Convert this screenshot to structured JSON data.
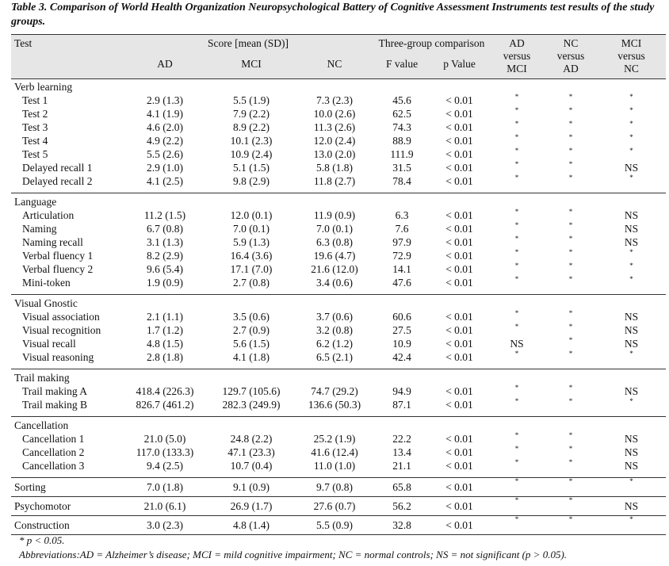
{
  "caption": "Table 3. Comparison of World Health Organization Neuropsychological Battery of Cognitive Assessment Instruments test results of the study groups.",
  "header": {
    "test": "Test",
    "score": "Score [mean (SD)]",
    "three_group": "Three-group comparison",
    "ad_vs_mci": [
      "AD",
      "versus",
      "MCI"
    ],
    "nc_vs_ad": [
      "NC",
      "versus",
      "AD"
    ],
    "mci_vs_nc": [
      "MCI",
      "versus",
      "NC"
    ],
    "ad": "AD",
    "mci": "MCI",
    "nc": "NC",
    "f_value": "F value",
    "p_value": "p Value"
  },
  "sections": [
    {
      "title": "Verb learning",
      "rows": [
        {
          "test": "Test 1",
          "ad": "2.9 (1.3)",
          "mci": "5.5 (1.9)",
          "nc": "7.3 (2.3)",
          "f": "45.6",
          "p": "< 0.01",
          "c1": "*",
          "c2": "*",
          "c3": "*"
        },
        {
          "test": "Test 2",
          "ad": "4.1 (1.9)",
          "mci": "7.9 (2.2)",
          "nc": "10.0 (2.6)",
          "f": "62.5",
          "p": "< 0.01",
          "c1": "*",
          "c2": "*",
          "c3": "*"
        },
        {
          "test": "Test 3",
          "ad": "4.6 (2.0)",
          "mci": "8.9 (2.2)",
          "nc": "11.3 (2.6)",
          "f": "74.3",
          "p": "< 0.01",
          "c1": "*",
          "c2": "*",
          "c3": "*"
        },
        {
          "test": "Test 4",
          "ad": "4.9 (2.2)",
          "mci": "10.1 (2.3)",
          "nc": "12.0 (2.4)",
          "f": "88.9",
          "p": "< 0.01",
          "c1": "*",
          "c2": "*",
          "c3": "*"
        },
        {
          "test": "Test 5",
          "ad": "5.5 (2.6)",
          "mci": "10.9 (2.4)",
          "nc": "13.0 (2.0)",
          "f": "111.9",
          "p": "< 0.01",
          "c1": "*",
          "c2": "*",
          "c3": "*"
        },
        {
          "test": "Delayed recall 1",
          "ad": "2.9 (1.0)",
          "mci": "5.1 (1.5)",
          "nc": "5.8 (1.8)",
          "f": "31.5",
          "p": "< 0.01",
          "c1": "*",
          "c2": "*",
          "c3": "NS"
        },
        {
          "test": "Delayed recall 2",
          "ad": "4.1 (2.5)",
          "mci": "9.8 (2.9)",
          "nc": "11.8 (2.7)",
          "f": "78.4",
          "p": "< 0.01",
          "c1": "*",
          "c2": "*",
          "c3": "*"
        }
      ]
    },
    {
      "title": "Language",
      "rows": [
        {
          "test": "Articulation",
          "ad": "11.2 (1.5)",
          "mci": "12.0 (0.1)",
          "nc": "11.9 (0.9)",
          "f": "6.3",
          "p": "< 0.01",
          "c1": "*",
          "c2": "*",
          "c3": "NS"
        },
        {
          "test": "Naming",
          "ad": "6.7 (0.8)",
          "mci": "7.0 (0.1)",
          "nc": "7.0 (0.1)",
          "f": "7.6",
          "p": "< 0.01",
          "c1": "*",
          "c2": "*",
          "c3": "NS"
        },
        {
          "test": "Naming recall",
          "ad": "3.1 (1.3)",
          "mci": "5.9 (1.3)",
          "nc": "6.3 (0.8)",
          "f": "97.9",
          "p": "< 0.01",
          "c1": "*",
          "c2": "*",
          "c3": "NS"
        },
        {
          "test": "Verbal fluency 1",
          "ad": "8.2 (2.9)",
          "mci": "16.4 (3.6)",
          "nc": "19.6 (4.7)",
          "f": "72.9",
          "p": "< 0.01",
          "c1": "*",
          "c2": "*",
          "c3": "*"
        },
        {
          "test": "Verbal fluency 2",
          "ad": "9.6 (5.4)",
          "mci": "17.1 (7.0)",
          "nc": "21.6 (12.0)",
          "f": "14.1",
          "p": "< 0.01",
          "c1": "*",
          "c2": "*",
          "c3": "*"
        },
        {
          "test": "Mini-token",
          "ad": "1.9 (0.9)",
          "mci": "2.7 (0.8)",
          "nc": "3.4 (0.6)",
          "f": "47.6",
          "p": "< 0.01",
          "c1": "*",
          "c2": "*",
          "c3": "*"
        }
      ]
    },
    {
      "title": "Visual Gnostic",
      "rows": [
        {
          "test": "Visual association",
          "ad": "2.1 (1.1)",
          "mci": "3.5 (0.6)",
          "nc": "3.7 (0.6)",
          "f": "60.6",
          "p": "< 0.01",
          "c1": "*",
          "c2": "*",
          "c3": "NS"
        },
        {
          "test": "Visual recognition",
          "ad": "1.7 (1.2)",
          "mci": "2.7 (0.9)",
          "nc": "3.2 (0.8)",
          "f": "27.5",
          "p": "< 0.01",
          "c1": "*",
          "c2": "*",
          "c3": "NS"
        },
        {
          "test": "Visual recall",
          "ad": "4.8 (1.5)",
          "mci": "5.6 (1.5)",
          "nc": "6.2 (1.2)",
          "f": "10.9",
          "p": "< 0.01",
          "c1": "NS",
          "c2": "*",
          "c3": "NS"
        },
        {
          "test": "Visual reasoning",
          "ad": "2.8 (1.8)",
          "mci": "4.1 (1.8)",
          "nc": "6.5 (2.1)",
          "f": "42.4",
          "p": "< 0.01",
          "c1": "*",
          "c2": "*",
          "c3": "*"
        }
      ]
    },
    {
      "title": "Trail making",
      "rows": [
        {
          "test": "Trail making A",
          "ad": "418.4 (226.3)",
          "mci": "129.7 (105.6)",
          "nc": "74.7 (29.2)",
          "f": "94.9",
          "p": "< 0.01",
          "c1": "*",
          "c2": "*",
          "c3": "NS"
        },
        {
          "test": "Trail making B",
          "ad": "826.7 (461.2)",
          "mci": "282.3 (249.9)",
          "nc": "136.6 (50.3)",
          "f": "87.1",
          "p": "< 0.01",
          "c1": "*",
          "c2": "*",
          "c3": "*"
        }
      ]
    },
    {
      "title": "Cancellation",
      "rows": [
        {
          "test": "Cancellation 1",
          "ad": "21.0 (5.0)",
          "mci": "24.8 (2.2)",
          "nc": "25.2 (1.9)",
          "f": "22.2",
          "p": "< 0.01",
          "c1": "*",
          "c2": "*",
          "c3": "NS"
        },
        {
          "test": "Cancellation 2",
          "ad": "117.0 (133.3)",
          "mci": "47.1 (23.3)",
          "nc": "41.6 (12.4)",
          "f": "13.4",
          "p": "< 0.01",
          "c1": "*",
          "c2": "*",
          "c3": "NS"
        },
        {
          "test": "Cancellation 3",
          "ad": "9.4 (2.5)",
          "mci": "10.7 (0.4)",
          "nc": "11.0 (1.0)",
          "f": "21.1",
          "p": "< 0.01",
          "c1": "*",
          "c2": "*",
          "c3": "NS"
        }
      ]
    },
    {
      "title": "",
      "single": {
        "test": "Sorting",
        "ad": "7.0 (1.8)",
        "mci": "9.1 (0.9)",
        "nc": "9.7 (0.8)",
        "f": "65.8",
        "p": "< 0.01",
        "c1": "*",
        "c2": "*",
        "c3": "*"
      }
    },
    {
      "title": "",
      "single": {
        "test": "Psychomotor",
        "ad": "21.0 (6.1)",
        "mci": "26.9 (1.7)",
        "nc": "27.6 (0.7)",
        "f": "56.2",
        "p": "< 0.01",
        "c1": "*",
        "c2": "*",
        "c3": "NS"
      }
    },
    {
      "title": "",
      "single": {
        "test": "Construction",
        "ad": "3.0 (2.3)",
        "mci": "4.8 (1.4)",
        "nc": "5.5 (0.9)",
        "f": "32.8",
        "p": "< 0.01",
        "c1": "*",
        "c2": "*",
        "c3": "*"
      }
    }
  ],
  "footnote_sig": "* p < 0.05.",
  "abbreviations": "Abbreviations:AD = Alzheimer’s disease; MCI = mild cognitive impairment; NC = normal controls; NS = not significant (p > 0.05)."
}
